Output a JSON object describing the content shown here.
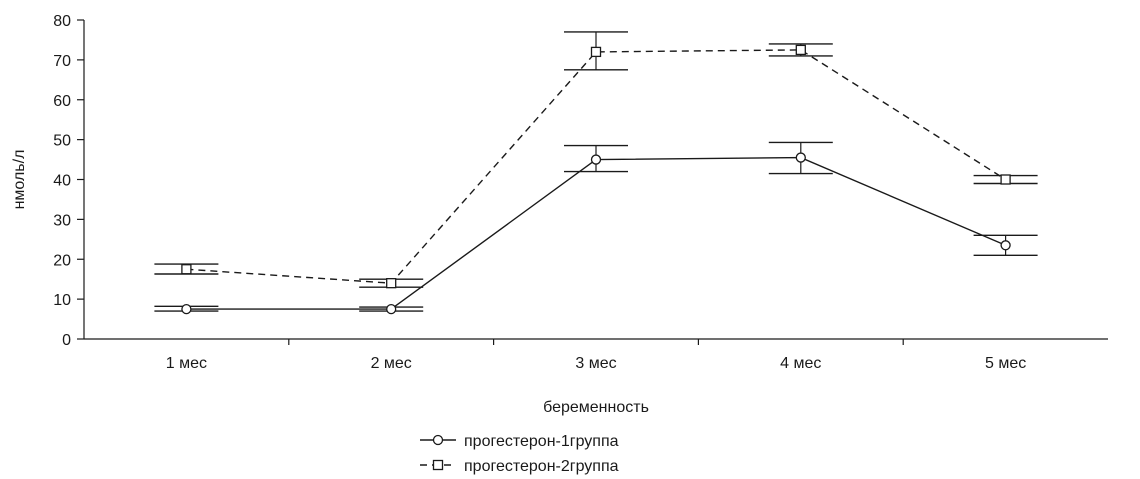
{
  "chart_data": {
    "type": "line",
    "title": "",
    "xlabel": "беременность",
    "ylabel": "нмоль/л",
    "ylim": [
      0,
      80
    ],
    "yticks": [
      0,
      10,
      20,
      30,
      40,
      50,
      60,
      70,
      80
    ],
    "categories": [
      "1 мес",
      "2 мес",
      "3 мес",
      "4 мес",
      "5 мес"
    ],
    "grid": false,
    "legend_position": "bottom",
    "series": [
      {
        "name": "прогестерон-1группа",
        "line_style": "solid",
        "marker": "circle",
        "values": [
          7.5,
          7.5,
          45,
          45.5,
          23.5
        ],
        "error_low": [
          7,
          7,
          42,
          41.5,
          21
        ],
        "error_high": [
          8.2,
          8,
          48.5,
          49.3,
          26
        ]
      },
      {
        "name": "прогестерон-2группа",
        "line_style": "dashed",
        "marker": "square",
        "values": [
          17.5,
          14,
          72,
          72.5,
          40
        ],
        "error_low": [
          16.3,
          13,
          67.5,
          71,
          39
        ],
        "error_high": [
          18.8,
          15,
          77,
          74,
          41
        ]
      }
    ]
  }
}
